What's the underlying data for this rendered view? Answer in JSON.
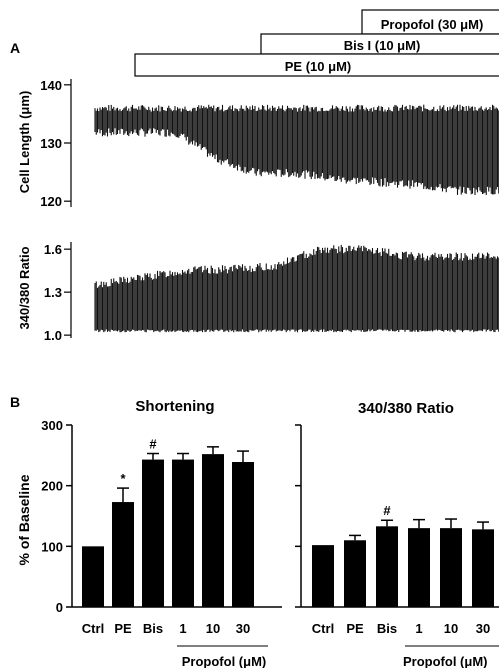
{
  "panel_a": {
    "label": "A",
    "drug_bars": [
      {
        "label": "Propofol (30 μM)"
      },
      {
        "label": "Bis I (10 μM)"
      },
      {
        "label": "PE (10 μM)"
      }
    ]
  },
  "panel_b": {
    "label": "B"
  },
  "chart_data": [
    {
      "type": "line",
      "ylabel": "Cell Length (μm)",
      "yticks": [
        140,
        130,
        120
      ],
      "ylim": [
        119,
        141
      ],
      "trace": {
        "color": "#111111",
        "upper_level": 136,
        "lower_profile": [
          131.5,
          131.5,
          131.5,
          127,
          124.5,
          124.5,
          123.5,
          123,
          122.5,
          121.5,
          121.5
        ]
      }
    },
    {
      "type": "line",
      "ylabel": "340/380 Ratio",
      "yticks": [
        "1.6",
        "1.3",
        "1.0"
      ],
      "ylim": [
        0.98,
        1.65
      ],
      "trace": {
        "color": "#111111",
        "baseline": 1.03,
        "upper_profile": [
          1.35,
          1.4,
          1.45,
          1.46,
          1.48,
          1.6,
          1.6,
          1.55,
          1.55,
          1.55
        ]
      }
    },
    {
      "type": "bar",
      "title": "Shortening",
      "ylabel": "% of Baseline",
      "categories": [
        "Ctrl",
        "PE",
        "Bis",
        "1",
        "10",
        "30"
      ],
      "values": [
        100,
        173,
        243,
        243,
        252,
        239
      ],
      "errors": [
        0,
        23,
        10,
        10,
        12,
        18
      ],
      "ylim": [
        0,
        300
      ],
      "yticks": [
        0,
        100,
        200,
        300
      ],
      "annotations": [
        {
          "category": "PE",
          "text": "*"
        },
        {
          "category": "Bis",
          "text": "#"
        }
      ],
      "group_label": "Propofol (μM)",
      "color": "#000000"
    },
    {
      "type": "bar",
      "title": "340/380 Ratio",
      "ylabel": "",
      "categories": [
        "Ctrl",
        "PE",
        "Bis",
        "1",
        "10",
        "30"
      ],
      "values": [
        102,
        110,
        133,
        130,
        130,
        128
      ],
      "errors": [
        0,
        8,
        10,
        14,
        15,
        12
      ],
      "ylim": [
        0,
        300
      ],
      "annotations": [
        {
          "category": "Bis",
          "text": "#"
        }
      ],
      "group_label": "Propofol (μM)",
      "color": "#000000"
    }
  ]
}
